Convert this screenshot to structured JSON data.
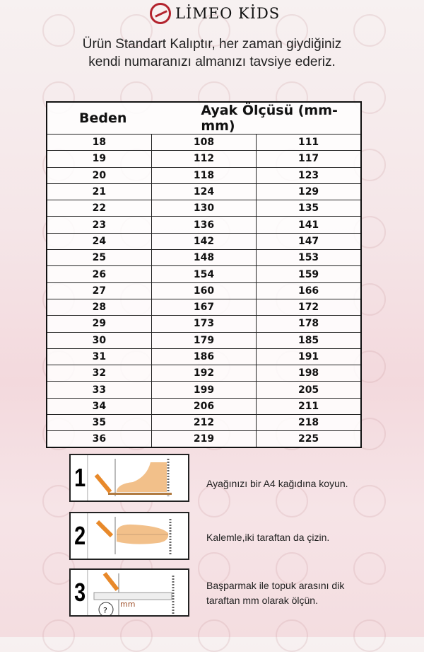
{
  "brand": "LİMEO KİDS",
  "intro": "Ürün Standart Kalıptır, her zaman giydiğiniz kendi numaranızı almanızı tavsiye ederiz.",
  "table": {
    "headers": [
      "Beden",
      "Ayak Ölçüsü (mm-mm)"
    ],
    "rows": [
      [
        "18",
        "108",
        "111"
      ],
      [
        "19",
        "112",
        "117"
      ],
      [
        "20",
        "118",
        "123"
      ],
      [
        "21",
        "124",
        "129"
      ],
      [
        "22",
        "130",
        "135"
      ],
      [
        "23",
        "136",
        "141"
      ],
      [
        "24",
        "142",
        "147"
      ],
      [
        "25",
        "148",
        "153"
      ],
      [
        "26",
        "154",
        "159"
      ],
      [
        "27",
        "160",
        "166"
      ],
      [
        "28",
        "167",
        "172"
      ],
      [
        "29",
        "173",
        "178"
      ],
      [
        "30",
        "179",
        "185"
      ],
      [
        "31",
        "186",
        "191"
      ],
      [
        "32",
        "192",
        "198"
      ],
      [
        "33",
        "199",
        "205"
      ],
      [
        "34",
        "206",
        "211"
      ],
      [
        "35",
        "212",
        "218"
      ],
      [
        "36",
        "219",
        "225"
      ]
    ]
  },
  "steps": [
    {
      "num": "1",
      "text": "Ayağınızı bir A4 kağıdına koyun."
    },
    {
      "num": "2",
      "text": "Kalemle,iki taraftan da çizin."
    },
    {
      "num": "3",
      "text": "Başparmak ile topuk arasını dik taraftan mm olarak ölçün.",
      "ruler_label": "mm",
      "badge": "?"
    }
  ],
  "colors": {
    "brand": "#b3232d",
    "foot": "#f2c08a",
    "pencil": "#e8892a"
  }
}
